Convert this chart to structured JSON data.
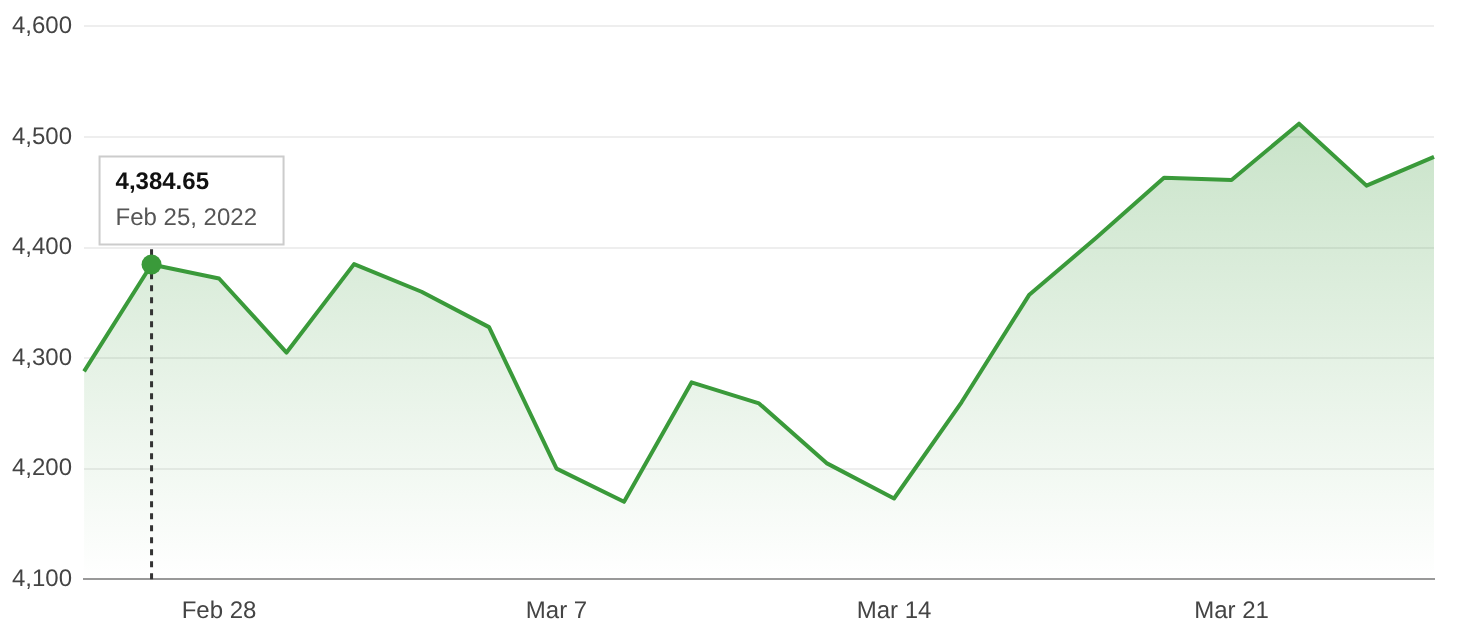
{
  "chart_data": {
    "type": "area",
    "categories": [
      null,
      null,
      "Feb 28",
      null,
      null,
      null,
      null,
      "Mar 7",
      null,
      null,
      null,
      null,
      "Mar 14",
      null,
      null,
      null,
      null,
      "Mar 21",
      null,
      null,
      null
    ],
    "values": [
      4288,
      4384.65,
      4372,
      4305,
      4385,
      4360,
      4328,
      4200,
      4170,
      4278,
      4259,
      4205,
      4173,
      4260,
      4357,
      4409,
      4463,
      4461,
      4512,
      4456,
      4482
    ],
    "color": "#3a9a3a",
    "ylim": [
      4100,
      4600
    ],
    "yticks": [
      {
        "value": 4100,
        "label": "4,100"
      },
      {
        "value": 4200,
        "label": "4,200"
      },
      {
        "value": 4300,
        "label": "4,300"
      },
      {
        "value": 4400,
        "label": "4,400"
      },
      {
        "value": 4500,
        "label": "4,500"
      },
      {
        "value": 4600,
        "label": "4,600"
      }
    ],
    "grid": "y",
    "legend": false,
    "value_labels": [
      null,
      "4,384.65",
      null,
      null,
      null,
      null,
      null,
      null,
      null,
      null,
      null,
      null,
      null,
      null,
      null,
      null,
      null,
      null,
      null,
      null,
      null
    ],
    "annotations": [
      {
        "text": "Feb 25, 2022",
        "y": 4384.65
      }
    ]
  }
}
